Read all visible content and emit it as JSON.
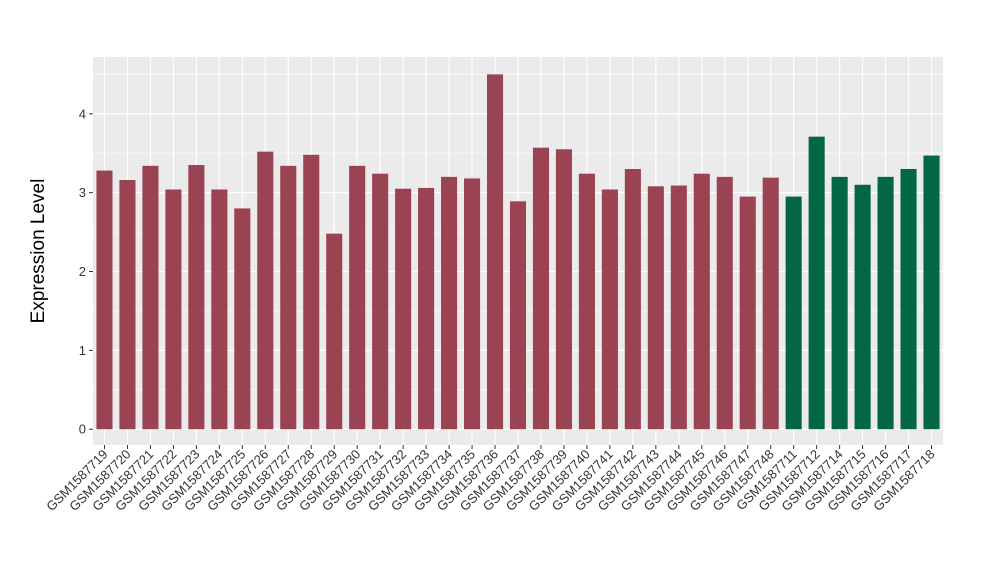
{
  "chart_data": {
    "type": "bar",
    "title": "",
    "xlabel": "",
    "ylabel": "Expression Level",
    "ylim": [
      -0.2,
      4.72
    ],
    "yticks": [
      0,
      1,
      2,
      3,
      4
    ],
    "grid": true,
    "legend": "none",
    "categories": [
      "GSM1587719",
      "GSM1587720",
      "GSM1587721",
      "GSM1587722",
      "GSM1587723",
      "GSM1587724",
      "GSM1587725",
      "GSM1587726",
      "GSM1587727",
      "GSM1587728",
      "GSM1587729",
      "GSM1587730",
      "GSM1587731",
      "GSM1587732",
      "GSM1587733",
      "GSM1587734",
      "GSM1587735",
      "GSM1587736",
      "GSM1587737",
      "GSM1587738",
      "GSM1587739",
      "GSM1587740",
      "GSM1587741",
      "GSM1587742",
      "GSM1587743",
      "GSM1587744",
      "GSM1587745",
      "GSM1587746",
      "GSM1587747",
      "GSM1587748",
      "GSM1587711",
      "GSM1587712",
      "GSM1587714",
      "GSM1587715",
      "GSM1587716",
      "GSM1587717",
      "GSM1587718"
    ],
    "values": [
      3.28,
      3.16,
      3.34,
      3.04,
      3.35,
      3.04,
      2.8,
      3.52,
      3.34,
      3.48,
      2.48,
      3.34,
      3.24,
      3.05,
      3.06,
      3.2,
      3.18,
      4.5,
      2.89,
      3.57,
      3.55,
      3.24,
      3.04,
      3.3,
      3.08,
      3.09,
      3.24,
      3.2,
      2.95,
      3.19,
      2.95,
      3.71,
      3.2,
      3.1,
      3.2,
      3.3,
      3.47
    ],
    "groups": [
      0,
      0,
      0,
      0,
      0,
      0,
      0,
      0,
      0,
      0,
      0,
      0,
      0,
      0,
      0,
      0,
      0,
      0,
      0,
      0,
      0,
      0,
      0,
      0,
      0,
      0,
      0,
      0,
      0,
      0,
      1,
      1,
      1,
      1,
      1,
      1,
      1
    ],
    "group_colors": [
      "#9A4352",
      "#036644"
    ],
    "panel_background": "#EBEBEB",
    "grid_color": "#FFFFFF"
  }
}
